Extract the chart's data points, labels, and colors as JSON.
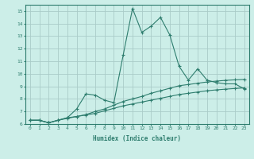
{
  "xlabel": "Humidex (Indice chaleur)",
  "background_color": "#cceee8",
  "grid_color": "#aaccc8",
  "line_color": "#2e7d6e",
  "xlim": [
    -0.5,
    23.5
  ],
  "ylim": [
    6,
    15.5
  ],
  "xticks": [
    0,
    1,
    2,
    3,
    4,
    5,
    6,
    7,
    8,
    9,
    10,
    11,
    12,
    13,
    14,
    15,
    16,
    17,
    18,
    19,
    20,
    21,
    22,
    23
  ],
  "yticks": [
    6,
    7,
    8,
    9,
    10,
    11,
    12,
    13,
    14,
    15
  ],
  "series": [
    [
      6.3,
      6.3,
      6.1,
      6.3,
      6.5,
      7.2,
      8.4,
      8.3,
      7.9,
      7.7,
      11.5,
      15.2,
      13.3,
      13.8,
      14.5,
      13.1,
      10.6,
      9.5,
      10.4,
      9.5,
      9.3,
      9.2,
      9.2,
      8.8
    ],
    [
      6.3,
      6.3,
      6.1,
      6.3,
      6.5,
      6.6,
      6.75,
      7.0,
      7.2,
      7.5,
      7.8,
      8.0,
      8.2,
      8.45,
      8.65,
      8.85,
      9.05,
      9.15,
      9.25,
      9.35,
      9.42,
      9.48,
      9.52,
      9.55
    ],
    [
      6.3,
      6.3,
      6.1,
      6.3,
      6.45,
      6.6,
      6.72,
      6.85,
      7.05,
      7.25,
      7.45,
      7.6,
      7.75,
      7.9,
      8.05,
      8.2,
      8.35,
      8.45,
      8.55,
      8.65,
      8.72,
      8.78,
      8.83,
      8.88
    ]
  ]
}
